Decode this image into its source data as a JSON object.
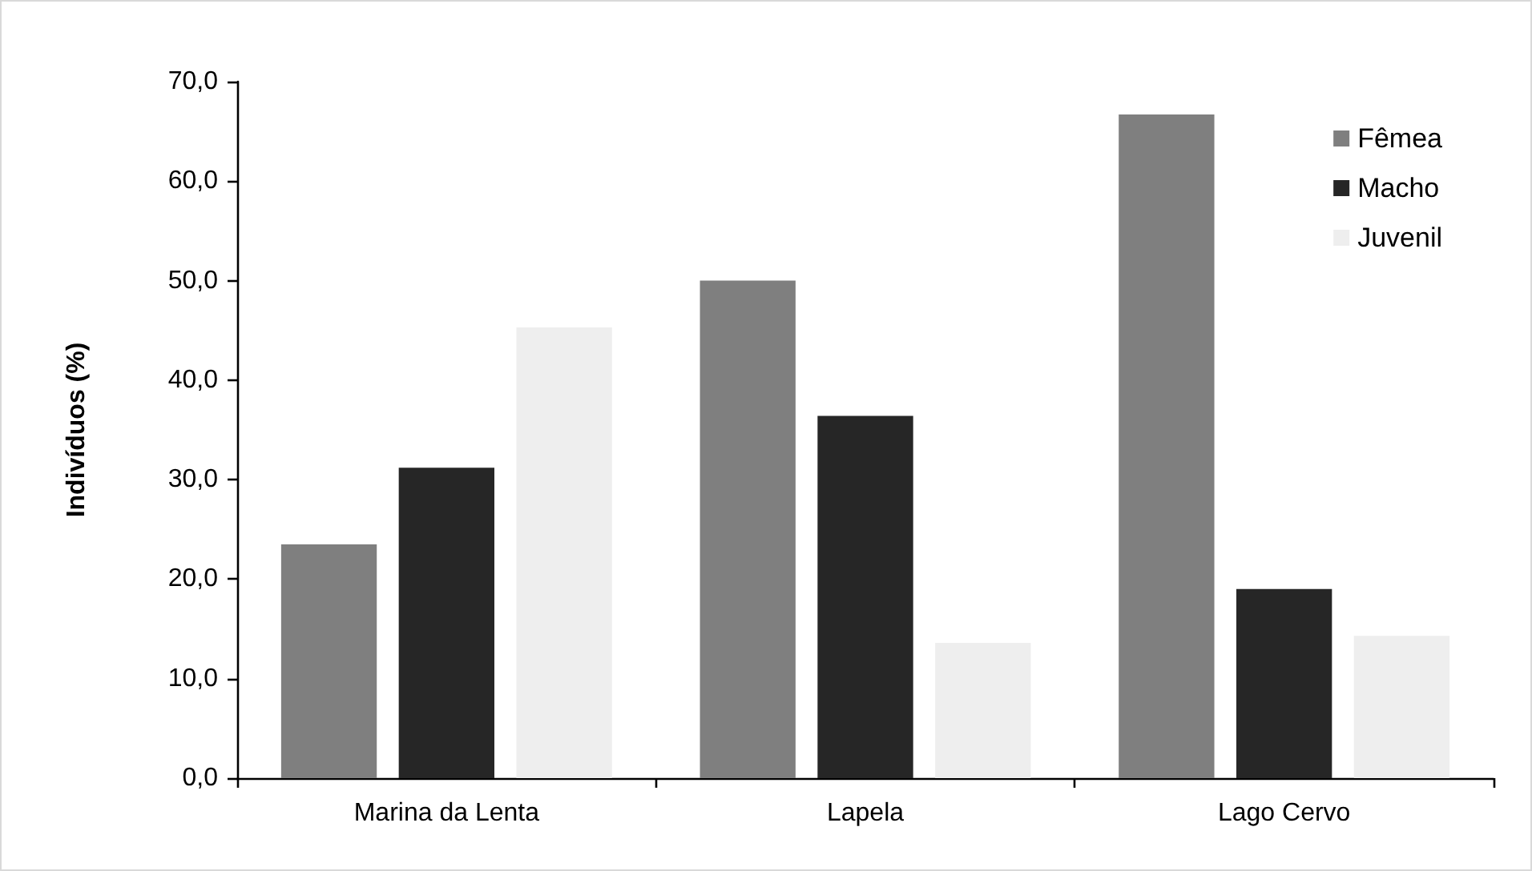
{
  "chart_data": {
    "type": "bar",
    "ylabel": "Indivíduos (%)",
    "categories": [
      "Marina da Lenta",
      "Lapela",
      "Lago Cervo"
    ],
    "series": [
      {
        "name": "Fêmea",
        "color": "#7f7f7f",
        "values": [
          23.5,
          50.0,
          66.7
        ]
      },
      {
        "name": "Macho",
        "color": "#262626",
        "values": [
          31.2,
          36.4,
          19.0
        ]
      },
      {
        "name": "Juvenil",
        "color": "#eeeeee",
        "values": [
          45.3,
          13.6,
          14.3
        ]
      }
    ],
    "ylim": [
      0,
      70
    ],
    "yticks": [
      {
        "value": 0,
        "label": "0,0"
      },
      {
        "value": 10,
        "label": "10,0"
      },
      {
        "value": 20,
        "label": "20,0"
      },
      {
        "value": 30,
        "label": "30,0"
      },
      {
        "value": 40,
        "label": "40,0"
      },
      {
        "value": 50,
        "label": "50,0"
      },
      {
        "value": 60,
        "label": "60,0"
      },
      {
        "value": 70,
        "label": "70,0"
      }
    ],
    "grid": false,
    "legend": "top right"
  }
}
